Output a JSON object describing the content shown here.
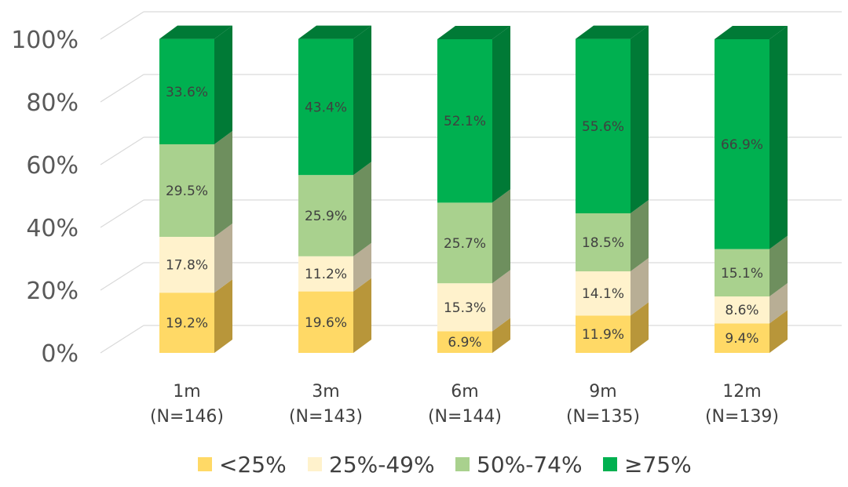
{
  "chart_data": {
    "type": "bar",
    "stacked": true,
    "style": "3d-stacked-percent",
    "categories": [
      "1m",
      "3m",
      "6m",
      "9m",
      "12m"
    ],
    "category_n": [
      "(N=146)",
      "(N=143)",
      "(N=144)",
      "(N=135)",
      "(N=139)"
    ],
    "series": [
      {
        "name": "<25%",
        "color": "#FFD966",
        "side_color": "#B8963A",
        "values": [
          19.2,
          19.6,
          6.9,
          11.9,
          9.4
        ]
      },
      {
        "name": "25%-49%",
        "color": "#FFF2CC",
        "side_color": "#B8AE95",
        "values": [
          17.8,
          11.2,
          15.3,
          14.1,
          8.6
        ]
      },
      {
        "name": "50%-74%",
        "color": "#A9D18E",
        "side_color": "#6E8F5E",
        "values": [
          29.5,
          25.9,
          25.7,
          18.5,
          15.1
        ]
      },
      {
        "name": "≥75%",
        "color": "#00B050",
        "side_color": "#007A36",
        "values": [
          33.6,
          43.4,
          52.1,
          55.6,
          66.9
        ]
      }
    ],
    "value_labels": [
      [
        "19.2%",
        "19.6%",
        "6.9%",
        "11.9%",
        "9.4%"
      ],
      [
        "17.8%",
        "11.2%",
        "15.3%",
        "14.1%",
        "8.6%"
      ],
      [
        "29.5%",
        "25.9%",
        "25.7%",
        "18.5%",
        "15.1%"
      ],
      [
        "33.6%",
        "43.4%",
        "52.1%",
        "55.6%",
        "66.9%"
      ]
    ],
    "y_ticks": [
      "0%",
      "20%",
      "40%",
      "60%",
      "80%",
      "100%"
    ],
    "ylim": [
      0,
      100
    ],
    "title": "",
    "xlabel": "",
    "ylabel": "",
    "grid": true,
    "legend": "bottom"
  }
}
